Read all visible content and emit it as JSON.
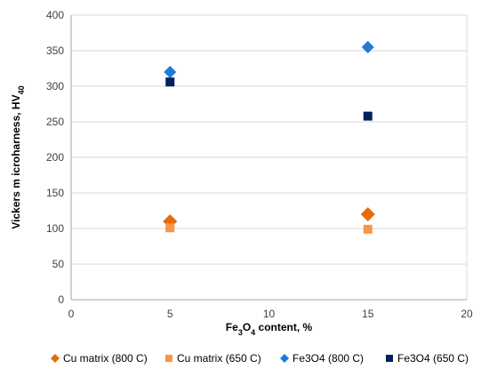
{
  "chart_data": {
    "type": "scatter",
    "xlabel": "Fe3O4 content, %",
    "xlabel_parts": [
      "Fe",
      "3",
      "O",
      "4",
      " content, %"
    ],
    "ylabel": "Vickers m icroharness, HV40",
    "ylabel_parts": [
      "Vickers m icroharness, HV",
      "40"
    ],
    "xlim": [
      0,
      20
    ],
    "ylim": [
      0,
      400
    ],
    "xticks": [
      0,
      5,
      10,
      15,
      20
    ],
    "yticks": [
      0,
      50,
      100,
      150,
      200,
      250,
      300,
      350,
      400
    ],
    "grid": "horizontal",
    "legend_position": "bottom",
    "series": [
      {
        "name": "Cu matrix (800 C)",
        "marker": "diamond",
        "color": "#E46C0A",
        "size": 8,
        "points": [
          {
            "x": 5,
            "y": 110
          },
          {
            "x": 15,
            "y": 120
          }
        ]
      },
      {
        "name": "Cu matrix (650 C)",
        "marker": "square",
        "color": "#F79646",
        "size": 5,
        "points": [
          {
            "x": 5,
            "y": 101
          },
          {
            "x": 15,
            "y": 99
          }
        ]
      },
      {
        "name": "Fe3O4 (800 C)",
        "marker": "diamond",
        "color": "#1F7BD8",
        "size": 7,
        "points": [
          {
            "x": 5,
            "y": 320
          },
          {
            "x": 15,
            "y": 355
          }
        ]
      },
      {
        "name": "Fe3O4 (650 C)",
        "marker": "square",
        "color": "#002060",
        "size": 5,
        "points": [
          {
            "x": 5,
            "y": 306
          },
          {
            "x": 15,
            "y": 258
          }
        ]
      }
    ]
  }
}
